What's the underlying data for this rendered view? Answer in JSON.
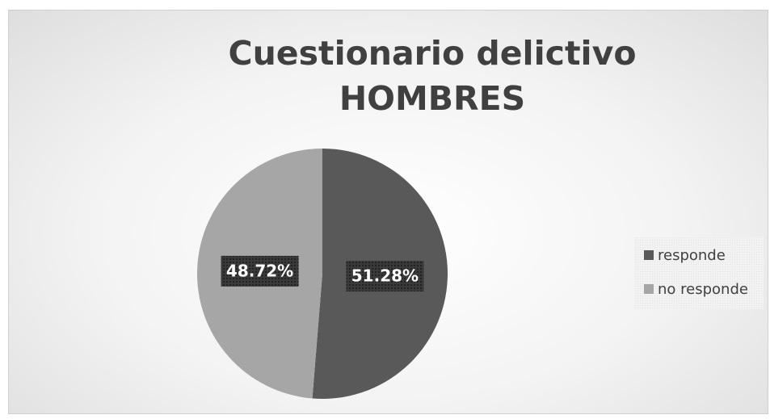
{
  "chart_data": {
    "type": "pie",
    "title": "Cuestionario delictivo\nHOMBRES",
    "categories": [
      "responde",
      "no responde"
    ],
    "values": [
      51.28,
      48.72
    ],
    "value_labels": [
      "51.28%",
      "48.72%"
    ],
    "colors": [
      "#595959",
      "#a6a6a6"
    ],
    "legend": "right"
  }
}
